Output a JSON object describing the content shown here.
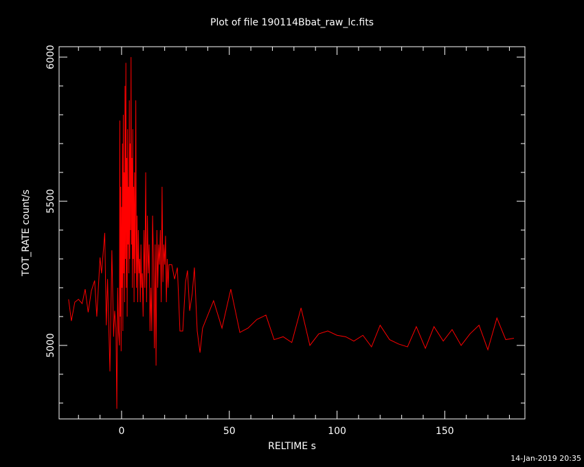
{
  "chart_data": {
    "type": "line",
    "title": "Plot of file 190114Bbat_raw_lc.fits",
    "x_label": "RELTIME  s",
    "y_label": "TOT_RATE  count/s",
    "timestamp": "14-Jan-2019 20:35",
    "xlim": [
      -29,
      187.2
    ],
    "ylim": [
      4745,
      6036
    ],
    "xticks": [
      0,
      50,
      100,
      150
    ],
    "yticks": [
      5000,
      5500,
      6000
    ],
    "xminorticks": [
      -20,
      -10,
      10,
      20,
      30,
      40,
      60,
      70,
      80,
      90,
      110,
      120,
      130,
      140,
      160,
      170,
      180
    ],
    "yminorticks": [
      4800,
      4900,
      5100,
      5200,
      5300,
      5400,
      5600,
      5700,
      5800,
      5900
    ],
    "series": [
      {
        "color": "#ff0000",
        "x": [
          -24.6,
          -23.3,
          -21.7,
          -20,
          -18.3,
          -16.9,
          -15.5,
          -14,
          -12.5,
          -11.5,
          -10,
          -9.3,
          -7.8,
          -7.1,
          -6.5,
          -5.4,
          -4.5,
          -3.7,
          -3.2,
          -2.6,
          -2.2,
          -1.8,
          -1.4,
          -1,
          -0.8,
          -0.6,
          -0.4,
          -0.2,
          0,
          0.2,
          0.4,
          0.6,
          0.8,
          1,
          1.2,
          1.4,
          1.6,
          1.8,
          2,
          2.2,
          2.4,
          2.6,
          2.8,
          3,
          3.2,
          3.4,
          3.6,
          3.8,
          4,
          4.2,
          4.4,
          4.6,
          4.8,
          5,
          5.2,
          5.4,
          5.6,
          5.8,
          6,
          6.3,
          6.6,
          6.9,
          7.2,
          7.5,
          7.8,
          8.1,
          8.4,
          8.7,
          9,
          9.3,
          9.6,
          10,
          10.4,
          10.8,
          11.2,
          11.6,
          12,
          12.4,
          12.8,
          13.2,
          13.6,
          14,
          14.4,
          14.8,
          15.2,
          15.6,
          16,
          16.4,
          16.8,
          17.2,
          17.6,
          18,
          18.4,
          18.8,
          19.2,
          19.6,
          20,
          20.4,
          20.8,
          21.2,
          21.6,
          22,
          23.3,
          24.6,
          25.9,
          27.1,
          28.4,
          29.7,
          30.6,
          31.6,
          32.8,
          33.8,
          35.1,
          36.4,
          37.6,
          42.7,
          46.6,
          50.7,
          54.9,
          58.7,
          62.8,
          67,
          70.8,
          75,
          79,
          83.3,
          87.4,
          91.5,
          95.7,
          100,
          104,
          107.8,
          112,
          116,
          120,
          124.4,
          128.5,
          132.7,
          136.8,
          141,
          145,
          149.3,
          153.4,
          157.6,
          161.7,
          165.9,
          170,
          174.2,
          178.3,
          182.1
        ],
        "values": [
          5160,
          5085,
          5150,
          5160,
          5145,
          5195,
          5115,
          5190,
          5225,
          5100,
          5305,
          5250,
          5390,
          5070,
          5230,
          4910,
          5330,
          5030,
          5120,
          5060,
          4780,
          5200,
          5050,
          5000,
          5780,
          5100,
          5550,
          4980,
          5480,
          5200,
          5700,
          5050,
          5800,
          5250,
          5600,
          5150,
          5900,
          5300,
          5980,
          5200,
          5650,
          5100,
          5750,
          5350,
          5550,
          5250,
          5850,
          5300,
          5700,
          5400,
          6000,
          5350,
          5650,
          5200,
          5750,
          5300,
          5550,
          5150,
          5600,
          5250,
          5850,
          5200,
          5450,
          5150,
          5400,
          5250,
          5300,
          5150,
          5350,
          5200,
          5250,
          5100,
          5400,
          5200,
          5600,
          5150,
          5450,
          5250,
          5350,
          5050,
          5200,
          5050,
          5450,
          5300,
          4990,
          5350,
          4930,
          5400,
          5200,
          5350,
          5280,
          5400,
          5150,
          5550,
          5220,
          5350,
          5280,
          5380,
          5150,
          5300,
          5200,
          5280,
          5280,
          5230,
          5270,
          5050,
          5050,
          5220,
          5260,
          5120,
          5180,
          5270,
          5050,
          4975,
          5060,
          5155,
          5060,
          5195,
          5045,
          5060,
          5090,
          5105,
          5020,
          5030,
          5010,
          5130,
          5000,
          5040,
          5050,
          5035,
          5030,
          5015,
          5035,
          4995,
          5070,
          5020,
          5005,
          4995,
          5065,
          4990,
          5065,
          5015,
          5055,
          5000,
          5040,
          5070,
          4985,
          5095,
          5020,
          5025
        ]
      }
    ]
  }
}
